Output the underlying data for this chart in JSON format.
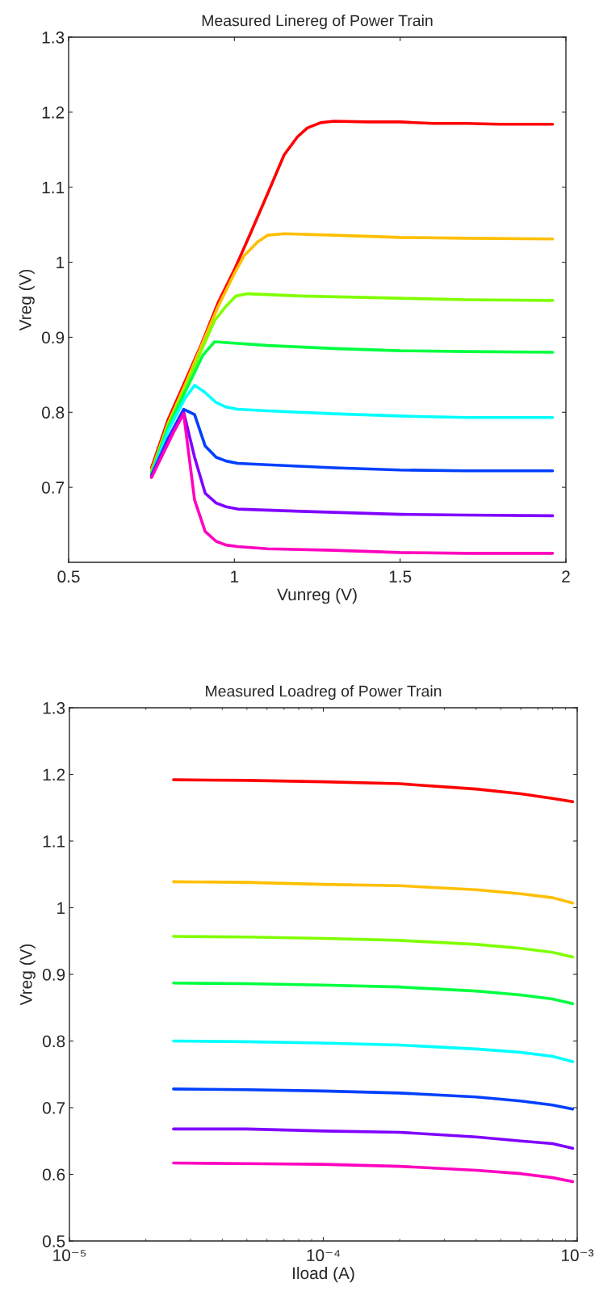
{
  "chart_data": [
    {
      "type": "line",
      "title": "Measured Linereg of Power Train",
      "xlabel": "Vunreg (V)",
      "ylabel": "Vreg (V)",
      "xlim": [
        0.5,
        2
      ],
      "xticks": [
        0.5,
        1,
        1.5,
        2
      ],
      "ylim": [
        0.6,
        1.3
      ],
      "yticks": [
        0.7,
        0.8,
        0.9,
        1,
        1.1,
        1.2,
        1.3
      ],
      "grid": false,
      "legend": false,
      "series": [
        {
          "color": "#ff0000",
          "x": [
            0.75,
            0.8,
            0.85,
            0.9,
            0.95,
            1.0,
            1.05,
            1.1,
            1.15,
            1.19,
            1.22,
            1.26,
            1.3,
            1.4,
            1.5,
            1.6,
            1.7,
            1.8,
            1.9,
            1.96
          ],
          "values": [
            0.726,
            0.79,
            0.84,
            0.89,
            0.945,
            0.99,
            1.04,
            1.091,
            1.143,
            1.167,
            1.179,
            1.186,
            1.188,
            1.187,
            1.187,
            1.185,
            1.185,
            1.184,
            1.184,
            1.184
          ]
        },
        {
          "color": "#ffbf00",
          "x": [
            0.75,
            0.8,
            0.85,
            0.9,
            0.95,
            1.0,
            1.03,
            1.07,
            1.1,
            1.15,
            1.3,
            1.5,
            1.7,
            1.96
          ],
          "values": [
            0.722,
            0.785,
            0.835,
            0.888,
            0.94,
            0.985,
            1.009,
            1.027,
            1.036,
            1.038,
            1.036,
            1.033,
            1.032,
            1.031
          ]
        },
        {
          "color": "#80ff00",
          "x": [
            0.75,
            0.8,
            0.85,
            0.9,
            0.94,
            0.972,
            1.005,
            1.04,
            1.2,
            1.5,
            1.7,
            1.96
          ],
          "values": [
            0.72,
            0.783,
            0.83,
            0.882,
            0.922,
            0.94,
            0.955,
            0.958,
            0.955,
            0.952,
            0.95,
            0.949
          ]
        },
        {
          "color": "#00ff40",
          "x": [
            0.75,
            0.8,
            0.85,
            0.905,
            0.94,
            0.975,
            1.1,
            1.3,
            1.5,
            1.7,
            1.96
          ],
          "values": [
            0.718,
            0.78,
            0.826,
            0.876,
            0.894,
            0.893,
            0.889,
            0.885,
            0.882,
            0.881,
            0.88
          ]
        },
        {
          "color": "#00ffff",
          "x": [
            0.75,
            0.8,
            0.85,
            0.88,
            0.91,
            0.945,
            0.975,
            1.01,
            1.1,
            1.3,
            1.5,
            1.7,
            1.96
          ],
          "values": [
            0.716,
            0.775,
            0.818,
            0.836,
            0.827,
            0.813,
            0.807,
            0.804,
            0.802,
            0.798,
            0.795,
            0.793,
            0.793
          ]
        },
        {
          "color": "#0040ff",
          "x": [
            0.75,
            0.8,
            0.847,
            0.88,
            0.912,
            0.945,
            0.975,
            1.01,
            1.1,
            1.3,
            1.5,
            1.7,
            1.96
          ],
          "values": [
            0.716,
            0.765,
            0.804,
            0.797,
            0.755,
            0.74,
            0.735,
            0.732,
            0.73,
            0.726,
            0.723,
            0.722,
            0.722
          ]
        },
        {
          "color": "#8000ff",
          "x": [
            0.75,
            0.8,
            0.847,
            0.88,
            0.912,
            0.945,
            0.975,
            1.01,
            1.2,
            1.5,
            1.7,
            1.96
          ],
          "values": [
            0.714,
            0.762,
            0.8,
            0.74,
            0.692,
            0.679,
            0.674,
            0.671,
            0.668,
            0.664,
            0.663,
            0.662
          ]
        },
        {
          "color": "#ff00bf",
          "x": [
            0.75,
            0.816,
            0.847,
            0.88,
            0.912,
            0.945,
            0.975,
            1.01,
            1.1,
            1.3,
            1.5,
            1.7,
            1.96
          ],
          "values": [
            0.713,
            0.773,
            0.798,
            0.683,
            0.641,
            0.628,
            0.623,
            0.621,
            0.618,
            0.616,
            0.613,
            0.612,
            0.612
          ]
        }
      ]
    },
    {
      "type": "line",
      "title": "Measured Loadreg of Power Train",
      "xlabel": "Iload (A)",
      "ylabel": "Vreg (V)",
      "log": "x",
      "xlim": [
        1e-05,
        0.001
      ],
      "xticks": [
        {
          "value": 1e-05,
          "label": "10⁻⁵"
        },
        {
          "value": 0.0001,
          "label": "10⁻⁴"
        },
        {
          "value": 0.001,
          "label": "10⁻³"
        }
      ],
      "ylim": [
        0.5,
        1.3
      ],
      "yticks": [
        0.5,
        0.6,
        0.7,
        0.8,
        0.9,
        1,
        1.1,
        1.2,
        1.3
      ],
      "grid": false,
      "legend": false,
      "x": [
        2.57e-05,
        5e-05,
        0.0001,
        0.0002,
        0.0004,
        0.0006,
        0.0008,
        0.00096
      ],
      "series": [
        {
          "color": "#ff0000",
          "values": [
            1.192,
            1.191,
            1.189,
            1.186,
            1.178,
            1.171,
            1.164,
            1.159
          ]
        },
        {
          "color": "#ffbf00",
          "values": [
            1.039,
            1.038,
            1.035,
            1.033,
            1.027,
            1.021,
            1.015,
            1.007
          ]
        },
        {
          "color": "#80ff00",
          "values": [
            0.957,
            0.956,
            0.954,
            0.951,
            0.945,
            0.939,
            0.933,
            0.926
          ]
        },
        {
          "color": "#00ff40",
          "values": [
            0.887,
            0.886,
            0.884,
            0.881,
            0.875,
            0.869,
            0.863,
            0.856
          ]
        },
        {
          "color": "#00ffff",
          "values": [
            0.8,
            0.799,
            0.797,
            0.794,
            0.788,
            0.783,
            0.777,
            0.769
          ]
        },
        {
          "color": "#0040ff",
          "values": [
            0.728,
            0.727,
            0.725,
            0.722,
            0.716,
            0.71,
            0.704,
            0.698
          ]
        },
        {
          "color": "#8000ff",
          "values": [
            0.668,
            0.668,
            0.665,
            0.663,
            0.656,
            0.65,
            0.646,
            0.639
          ]
        },
        {
          "color": "#ff00bf",
          "values": [
            0.617,
            0.616,
            0.615,
            0.612,
            0.606,
            0.601,
            0.595,
            0.589
          ]
        }
      ]
    }
  ]
}
